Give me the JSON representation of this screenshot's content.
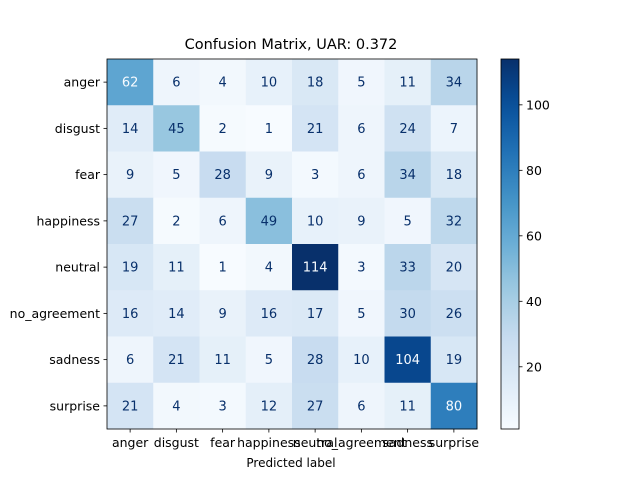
{
  "chart_data": {
    "type": "heatmap",
    "title": "Confusion Matrix, UAR: 0.372",
    "xlabel": "Predicted label",
    "ylabel": "",
    "row_labels": [
      "anger",
      "disgust",
      "fear",
      "happiness",
      "neutral",
      "no_agreement",
      "sadness",
      "surprise"
    ],
    "col_labels": [
      "anger",
      "disgust",
      "fear",
      "happiness",
      "neutral",
      "no_agreement",
      "sadness",
      "surprise"
    ],
    "values": [
      [
        62,
        6,
        4,
        10,
        18,
        5,
        11,
        34
      ],
      [
        14,
        45,
        2,
        1,
        21,
        6,
        24,
        7
      ],
      [
        9,
        5,
        28,
        9,
        3,
        6,
        34,
        18
      ],
      [
        27,
        2,
        6,
        49,
        10,
        9,
        5,
        32
      ],
      [
        19,
        11,
        1,
        4,
        114,
        3,
        33,
        20
      ],
      [
        16,
        14,
        9,
        16,
        17,
        5,
        30,
        26
      ],
      [
        6,
        21,
        11,
        5,
        28,
        10,
        104,
        19
      ],
      [
        21,
        4,
        3,
        12,
        27,
        6,
        11,
        80
      ]
    ],
    "colormap": "Blues",
    "color_range": [
      1,
      114
    ],
    "colorbar_ticks": [
      20,
      40,
      60,
      80,
      100
    ],
    "colors": {
      "low": "#f7fbff",
      "high": "#08306b",
      "text_light": "#f7fbff",
      "text_dark": "#08306b"
    }
  }
}
